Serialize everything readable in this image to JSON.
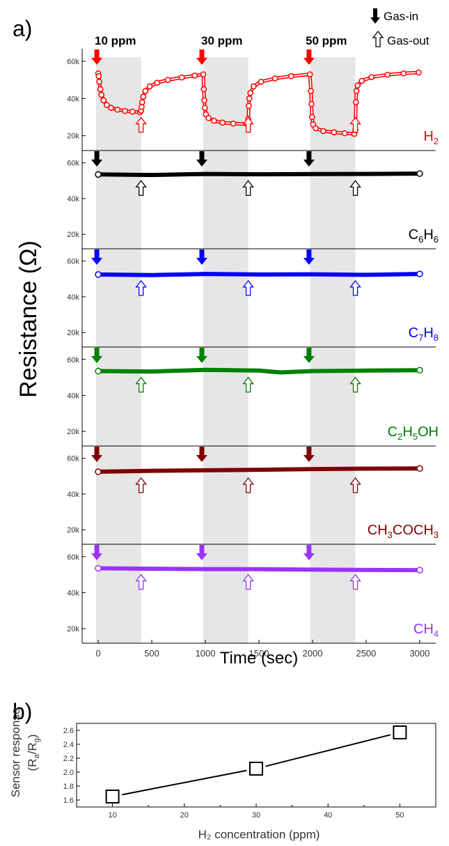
{
  "figure": {
    "panel_a_label": "a)",
    "panel_b_label": "b)",
    "legend": {
      "gas_in": "Gas-in",
      "gas_out": "Gas-out"
    },
    "concentrations": [
      "10 ppm",
      "30 ppm",
      "50 ppm"
    ]
  },
  "chart_data": [
    {
      "type": "line",
      "panel": "a",
      "xlabel": "Time (sec)",
      "ylabel": "Resistance (Ω)",
      "xlim": [
        -150,
        3150
      ],
      "ylim": [
        15000,
        63000
      ],
      "xticks": [
        0,
        500,
        1000,
        1500,
        2000,
        2500,
        3000
      ],
      "x_tick_labels": [
        "0",
        "500",
        "1000",
        "1500",
        "2000",
        "2500",
        "3000"
      ],
      "yticks": [
        20000,
        40000,
        60000
      ],
      "y_tick_labels": [
        "20k",
        "40k",
        "60k"
      ],
      "gas_exposure_windows": [
        [
          -20,
          400
        ],
        [
          980,
          1400
        ],
        [
          1980,
          2400
        ]
      ],
      "gas_in_times": [
        0,
        980,
        1980
      ],
      "gas_out_times": [
        400,
        1400,
        2400
      ],
      "series": [
        {
          "name": "H",
          "label_subscripts": [
            "2"
          ],
          "label_parts": [
            {
              "t": "H"
            },
            {
              "t": "2",
              "sub": true
            }
          ],
          "color": "#ff0000",
          "points": [
            [
              0,
              53500
            ],
            [
              5,
              52000
            ],
            [
              10,
              49000
            ],
            [
              20,
              45000
            ],
            [
              30,
              42000
            ],
            [
              50,
              39000
            ],
            [
              80,
              36500
            ],
            [
              120,
              35000
            ],
            [
              180,
              34000
            ],
            [
              250,
              33300
            ],
            [
              320,
              32900
            ],
            [
              390,
              32600
            ],
            [
              400,
              33500
            ],
            [
              405,
              35500
            ],
            [
              410,
              38000
            ],
            [
              420,
              41000
            ],
            [
              440,
              44000
            ],
            [
              480,
              46500
            ],
            [
              550,
              48500
            ],
            [
              650,
              50000
            ],
            [
              780,
              51300
            ],
            [
              900,
              52300
            ],
            [
              980,
              53000
            ],
            [
              985,
              45000
            ],
            [
              990,
              39000
            ],
            [
              995,
              35000
            ],
            [
              1005,
              31500
            ],
            [
              1030,
              29500
            ],
            [
              1080,
              28000
            ],
            [
              1160,
              27000
            ],
            [
              1260,
              26500
            ],
            [
              1390,
              26200
            ],
            [
              1400,
              29000
            ],
            [
              1405,
              36000
            ],
            [
              1410,
              40000
            ],
            [
              1420,
              43000
            ],
            [
              1450,
              46500
            ],
            [
              1520,
              49000
            ],
            [
              1650,
              50800
            ],
            [
              1800,
              52000
            ],
            [
              1975,
              53000
            ],
            [
              1985,
              44000
            ],
            [
              1990,
              37000
            ],
            [
              1995,
              30000
            ],
            [
              2005,
              26000
            ],
            [
              2030,
              24000
            ],
            [
              2100,
              22500
            ],
            [
              2200,
              21800
            ],
            [
              2300,
              21300
            ],
            [
              2390,
              21000
            ],
            [
              2400,
              23000
            ],
            [
              2405,
              38000
            ],
            [
              2410,
              44000
            ],
            [
              2420,
              47000
            ],
            [
              2460,
              49500
            ],
            [
              2550,
              51500
            ],
            [
              2700,
              52800
            ],
            [
              2850,
              53500
            ],
            [
              2990,
              54000
            ]
          ]
        },
        {
          "name": "C",
          "label_parts": [
            {
              "t": "C"
            },
            {
              "t": "6",
              "sub": true
            },
            {
              "t": "H"
            },
            {
              "t": "6",
              "sub": true
            }
          ],
          "color": "#000000",
          "points": [
            [
              0,
              53500
            ],
            [
              500,
              53200
            ],
            [
              1000,
              53800
            ],
            [
              1500,
              53600
            ],
            [
              2000,
              53700
            ],
            [
              2500,
              53800
            ],
            [
              3000,
              54000
            ]
          ]
        },
        {
          "name": "C",
          "label_parts": [
            {
              "t": "C"
            },
            {
              "t": "7",
              "sub": true
            },
            {
              "t": "H"
            },
            {
              "t": "8",
              "sub": true
            }
          ],
          "color": "#0000ff",
          "points": [
            [
              0,
              52500
            ],
            [
              500,
              52200
            ],
            [
              1000,
              52800
            ],
            [
              1500,
              52500
            ],
            [
              2000,
              52600
            ],
            [
              2500,
              52300
            ],
            [
              3000,
              52800
            ]
          ]
        },
        {
          "name": "C",
          "label_parts": [
            {
              "t": "C"
            },
            {
              "t": "2",
              "sub": true
            },
            {
              "t": "H"
            },
            {
              "t": "5",
              "sub": true
            },
            {
              "t": "OH"
            }
          ],
          "color": "#008000",
          "points": [
            [
              0,
              53500
            ],
            [
              500,
              53300
            ],
            [
              1000,
              54200
            ],
            [
              1500,
              53800
            ],
            [
              1700,
              52800
            ],
            [
              2000,
              53500
            ],
            [
              2500,
              53800
            ],
            [
              3000,
              54000
            ]
          ]
        },
        {
          "name": "CH",
          "label_parts": [
            {
              "t": "CH"
            },
            {
              "t": "3",
              "sub": true
            },
            {
              "t": "COCH"
            },
            {
              "t": "3",
              "sub": true
            }
          ],
          "color": "#800000",
          "points": [
            [
              0,
              52500
            ],
            [
              500,
              53000
            ],
            [
              1000,
              53300
            ],
            [
              1500,
              53600
            ],
            [
              2000,
              54000
            ],
            [
              2500,
              54200
            ],
            [
              3000,
              54300
            ]
          ]
        },
        {
          "name": "CH",
          "label_parts": [
            {
              "t": "CH"
            },
            {
              "t": "4",
              "sub": true
            }
          ],
          "color": "#9933ff",
          "points": [
            [
              0,
              53500
            ],
            [
              500,
              53300
            ],
            [
              1000,
              53100
            ],
            [
              1500,
              53000
            ],
            [
              2000,
              52800
            ],
            [
              2500,
              52600
            ],
            [
              3000,
              52500
            ]
          ]
        }
      ]
    },
    {
      "type": "line",
      "panel": "b",
      "xlabel": "H₂ concentration (ppm)",
      "ylabel_line1": "Sensor response",
      "ylabel_line2": "(Ra/Rg)",
      "xlim": [
        5,
        55
      ],
      "ylim": [
        1.5,
        2.7
      ],
      "xticks": [
        10,
        20,
        30,
        40,
        50
      ],
      "x_tick_labels": [
        "10",
        "20",
        "30",
        "40",
        "50"
      ],
      "yticks": [
        1.6,
        1.8,
        2.0,
        2.2,
        2.4,
        2.6
      ],
      "y_tick_labels": [
        "1.6",
        "1.8",
        "2.0",
        "2.2",
        "2.4",
        "2.6"
      ],
      "x": [
        10,
        30,
        50
      ],
      "y": [
        1.65,
        2.05,
        2.57
      ],
      "marker": "square"
    }
  ]
}
